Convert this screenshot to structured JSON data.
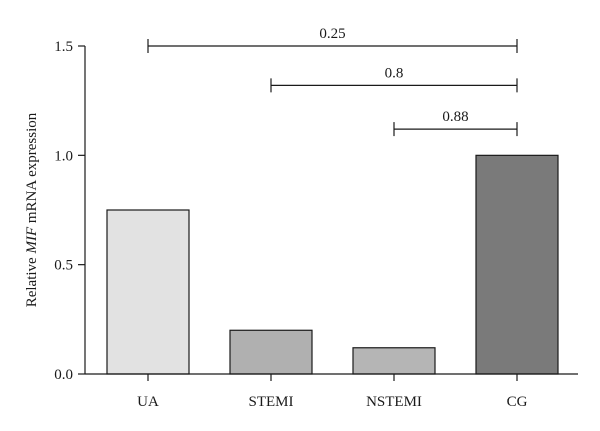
{
  "chart_data": {
    "type": "bar",
    "categories": [
      "UA",
      "STEMI",
      "NSTEMI",
      "CG"
    ],
    "values": [
      0.75,
      0.2,
      0.12,
      1.0
    ],
    "colors": [
      "#e2e2e2",
      "#b0b0b0",
      "#b5b5b5",
      "#7a7a7a"
    ],
    "ylabel_parts": [
      {
        "text": "Relative ",
        "italic": false
      },
      {
        "text": "MIF",
        "italic": true
      },
      {
        "text": " mRNA expression",
        "italic": false
      }
    ],
    "ylim": [
      0,
      1.5
    ],
    "yticks": [
      0.0,
      0.5,
      1.0,
      1.5
    ],
    "ytick_labels": [
      "0.0",
      "0.5",
      "1.0",
      "1.5"
    ],
    "grid": false,
    "comparisons": [
      {
        "from": "UA",
        "to": "CG",
        "label": "0.25",
        "level": 1.5
      },
      {
        "from": "STEMI",
        "to": "CG",
        "label": "0.8",
        "level": 1.32
      },
      {
        "from": "NSTEMI",
        "to": "CG",
        "label": "0.88",
        "level": 1.12
      }
    ]
  }
}
